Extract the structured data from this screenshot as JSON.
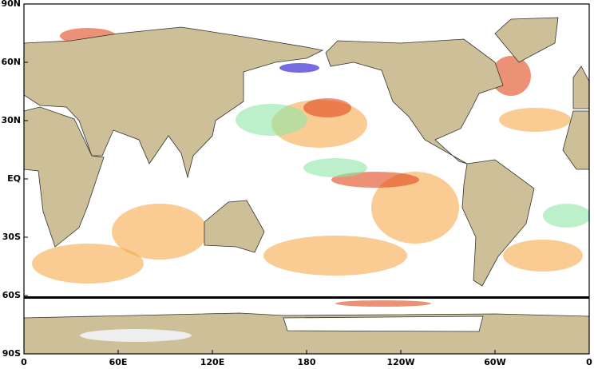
{
  "map": {
    "lat_labels": [
      "90N",
      "60N",
      "30N",
      "EQ",
      "30S",
      "60S",
      "90S"
    ],
    "lon_labels": [
      "0",
      "60E",
      "120E",
      "180",
      "120W",
      "60W",
      "0"
    ]
  }
}
